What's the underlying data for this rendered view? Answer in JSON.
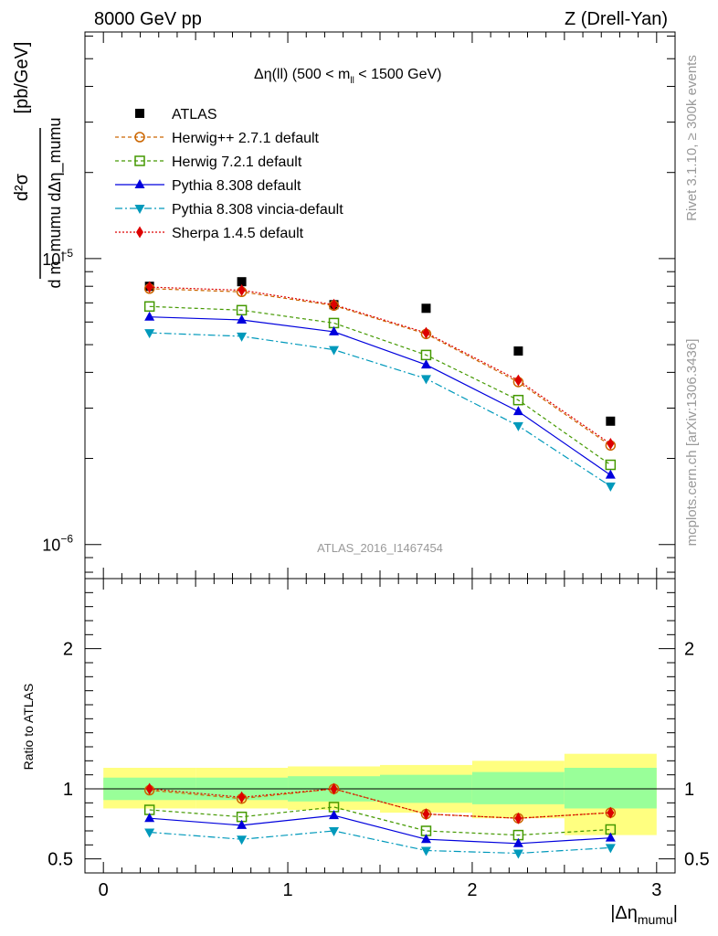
{
  "header": {
    "left": "8000 GeV pp",
    "right": "Z (Drell-Yan)"
  },
  "side": {
    "rivet": "Rivet 3.1.10, ≥ 300k events",
    "mcplots": "mcplots.cern.ch [arXiv:1306.3436]"
  },
  "analysis_id": "ATLAS_2016_I1467454",
  "labels": {
    "title_main": "Δη(ll) (500 < m",
    "title_sub": "ll",
    "title_tail": " < 1500 GeV)",
    "ylabel_num": "d²σ",
    "ylabel_den": "d m_mumu dΔη_mumu",
    "ylabel_unit": "[pb/GeV]",
    "ratio_label": "Ratio to ATLAS",
    "xlabel_main": "|Δη",
    "xlabel_sub": "mumu",
    "xlabel_tail": "|"
  },
  "chart_data": [
    {
      "type": "line",
      "panel": "main",
      "yscale": "log",
      "xlim": [
        -0.1,
        3.1
      ],
      "ylim": [
        7.6e-07,
        6.2e-05
      ],
      "x": [
        0.25,
        0.75,
        1.25,
        1.75,
        2.25,
        2.75
      ],
      "xticks": [
        0,
        1,
        2,
        3
      ],
      "yticks": [
        {
          "value": 1e-05,
          "base": "10",
          "exp": "−5"
        },
        {
          "value": 1e-06,
          "base": "10",
          "exp": "−6"
        }
      ],
      "series": [
        {
          "name": "ATLAS",
          "color": "#000000",
          "marker": "square",
          "line": "none",
          "values": [
            8e-06,
            8.3e-06,
            6.9e-06,
            6.7e-06,
            4.75e-06,
            2.7e-06
          ]
        },
        {
          "name": "Herwig++ 2.7.1 default",
          "color": "#cc6600",
          "marker": "circle-open",
          "dash": "4,3",
          "values": [
            7.85e-06,
            7.65e-06,
            6.85e-06,
            5.45e-06,
            3.7e-06,
            2.22e-06
          ]
        },
        {
          "name": "Herwig 7.2.1 default",
          "color": "#449900",
          "marker": "square-open",
          "dash": "4,3",
          "values": [
            6.8e-06,
            6.6e-06,
            5.95e-06,
            4.6e-06,
            3.2e-06,
            1.9e-06
          ]
        },
        {
          "name": "Pythia 8.308 default",
          "color": "#0000dd",
          "marker": "triangle-up",
          "dash": "",
          "values": [
            6.25e-06,
            6.1e-06,
            5.55e-06,
            4.25e-06,
            2.92e-06,
            1.75e-06
          ]
        },
        {
          "name": "Pythia 8.308 vincia-default",
          "color": "#0099bb",
          "marker": "triangle-down",
          "dash": "8,3,2,3",
          "values": [
            5.5e-06,
            5.35e-06,
            4.8e-06,
            3.8e-06,
            2.6e-06,
            1.6e-06
          ]
        },
        {
          "name": "Sherpa 1.4.5 default",
          "color": "#dd0000",
          "marker": "diamond",
          "dash": "2,2",
          "values": [
            7.95e-06,
            7.75e-06,
            6.9e-06,
            5.5e-06,
            3.75e-06,
            2.25e-06
          ]
        }
      ]
    },
    {
      "type": "line",
      "panel": "ratio",
      "ylabel": "Ratio to ATLAS",
      "xlim": [
        -0.1,
        3.1
      ],
      "ylim": [
        0.4,
        2.5
      ],
      "x": [
        0.25,
        0.75,
        1.25,
        1.75,
        2.25,
        2.75
      ],
      "xticks": [
        0,
        1,
        2,
        3
      ],
      "yticks": [
        0.5,
        1,
        2
      ],
      "bins": [
        [
          0,
          0.5
        ],
        [
          0.5,
          1
        ],
        [
          1,
          1.5
        ],
        [
          1.5,
          2
        ],
        [
          2,
          2.5
        ],
        [
          2.5,
          3
        ]
      ],
      "bands": {
        "outer": {
          "color": "#ffff80",
          "lo": [
            0.86,
            0.86,
            0.85,
            0.83,
            0.79,
            0.67
          ],
          "hi": [
            1.15,
            1.15,
            1.16,
            1.17,
            1.2,
            1.25
          ]
        },
        "inner": {
          "color": "#99ff99",
          "lo": [
            0.92,
            0.92,
            0.91,
            0.9,
            0.89,
            0.86
          ],
          "hi": [
            1.08,
            1.08,
            1.09,
            1.1,
            1.12,
            1.15
          ]
        }
      },
      "series": [
        {
          "name": "Herwig++ 2.7.1 default",
          "values": [
            0.99,
            0.93,
            1.0,
            0.82,
            0.79,
            0.83
          ]
        },
        {
          "name": "Herwig 7.2.1 default",
          "values": [
            0.85,
            0.8,
            0.87,
            0.7,
            0.67,
            0.71
          ]
        },
        {
          "name": "Pythia 8.308 default",
          "values": [
            0.79,
            0.74,
            0.81,
            0.64,
            0.61,
            0.65
          ]
        },
        {
          "name": "Pythia 8.308 vincia-default",
          "values": [
            0.69,
            0.64,
            0.7,
            0.56,
            0.54,
            0.58
          ]
        },
        {
          "name": "Sherpa 1.4.5 default",
          "values": [
            1.0,
            0.94,
            1.0,
            0.82,
            0.79,
            0.83
          ]
        }
      ]
    }
  ]
}
